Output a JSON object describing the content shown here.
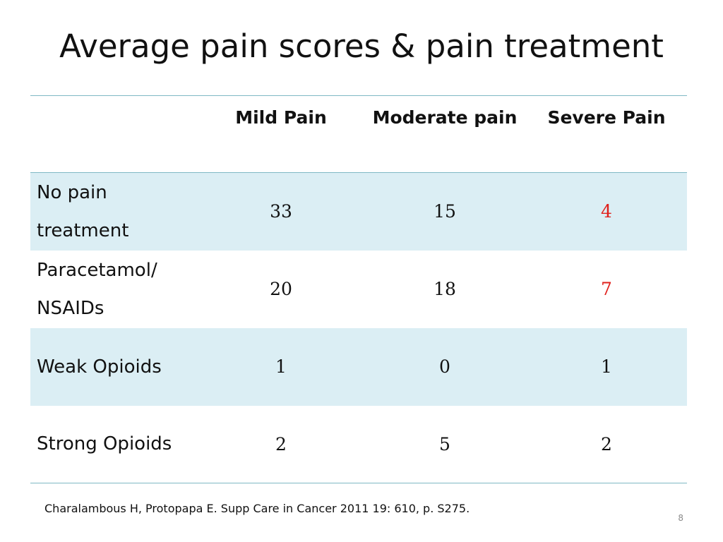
{
  "slide": {
    "title": "Average pain scores & pain treatment",
    "citation": "Charalambous H, Protopapa E. Supp Care in Cancer 2011 19: 610, p. S275.",
    "slide_number": "8",
    "highlight_color": "#e0201b",
    "band_color": "#dbeef4",
    "rule_color": "#7fb8c4"
  },
  "table": {
    "columns": [
      "",
      "Mild Pain",
      "Moderate pain",
      "Severe Pain"
    ],
    "rows": [
      {
        "label": "No pain treatment",
        "values": [
          "33",
          "15",
          "4"
        ],
        "highlight_last": true
      },
      {
        "label": "Paracetamol/ NSAIDs",
        "values": [
          "20",
          "18",
          "7"
        ],
        "highlight_last": true
      },
      {
        "label": "Weak Opioids",
        "values": [
          "1",
          "0",
          "1"
        ],
        "highlight_last": false
      },
      {
        "label": "Strong Opioids",
        "values": [
          "2",
          "5",
          "2"
        ],
        "highlight_last": false
      }
    ]
  },
  "chart_data": {
    "type": "table",
    "title": "Average pain scores & pain treatment",
    "columns": [
      "Mild Pain",
      "Moderate pain",
      "Severe Pain"
    ],
    "rows": [
      "No pain treatment",
      "Paracetamol/ NSAIDs",
      "Weak Opioids",
      "Strong Opioids"
    ],
    "values": [
      [
        33,
        15,
        4
      ],
      [
        20,
        18,
        7
      ],
      [
        1,
        0,
        1
      ],
      [
        2,
        5,
        2
      ]
    ]
  }
}
